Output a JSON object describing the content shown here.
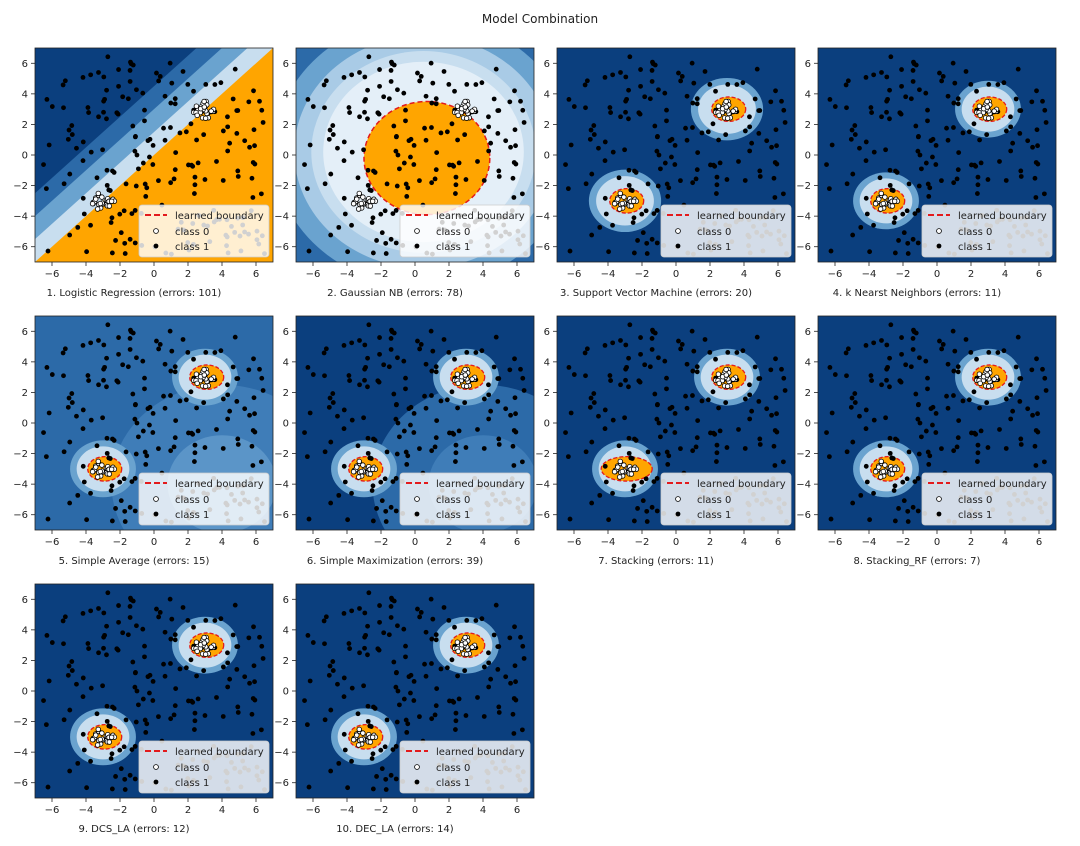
{
  "title": "Model Combination",
  "colors": {
    "dark_blue": "#0b3f7e",
    "mid_blue": "#2c6aa8",
    "light_blue": "#6aa3cf",
    "pale_blue": "#c8deef",
    "orange": "#ffa500",
    "boundary": "#e31a1c",
    "outlier": "#000000"
  },
  "legend": {
    "boundary": "learned boundary",
    "class0": "class 0",
    "class1": "class 1"
  },
  "chart_data": [
    {
      "type": "scatter",
      "subtitle": "1. Logistic Regression (errors: 101)",
      "model": "Logistic Regression",
      "errors": 101,
      "boundary": "linear",
      "xlim": [
        -7,
        7
      ],
      "ylim": [
        -7,
        7
      ],
      "xticks": [
        -6,
        -4,
        -2,
        0,
        2,
        4,
        6
      ],
      "yticks": [
        -6,
        -4,
        -2,
        0,
        2,
        4,
        6
      ],
      "inlier_centers": [
        [
          3,
          3
        ],
        [
          -3,
          -3
        ]
      ],
      "legend_position": "lower right"
    },
    {
      "type": "scatter",
      "subtitle": "2. Gaussian NB (errors: 78)",
      "model": "Gaussian NB",
      "errors": 78,
      "boundary": "circle",
      "xlim": [
        -7,
        7
      ],
      "ylim": [
        -7,
        7
      ],
      "xticks": [
        -6,
        -4,
        -2,
        0,
        2,
        4,
        6
      ],
      "yticks": [
        -6,
        -4,
        -2,
        0,
        2,
        4,
        6
      ],
      "inlier_centers": [
        [
          3,
          3
        ],
        [
          -3,
          -3
        ]
      ],
      "legend_position": "lower right"
    },
    {
      "type": "scatter",
      "subtitle": "3. Support Vector Machine (errors: 20)",
      "model": "Support Vector Machine",
      "errors": 20,
      "boundary": "blobs",
      "xlim": [
        -7,
        7
      ],
      "ylim": [
        -7,
        7
      ],
      "xticks": [
        -6,
        -4,
        -2,
        0,
        2,
        4,
        6
      ],
      "yticks": [
        -6,
        -4,
        -2,
        0,
        2,
        4,
        6
      ],
      "inlier_centers": [
        [
          3,
          3
        ],
        [
          -3,
          -3
        ]
      ],
      "legend_position": "lower right"
    },
    {
      "type": "scatter",
      "subtitle": "4. k Nearst Neighbors (errors: 11)",
      "model": "k Nearst Neighbors",
      "errors": 11,
      "boundary": "blobs",
      "xlim": [
        -7,
        7
      ],
      "ylim": [
        -7,
        7
      ],
      "xticks": [
        -6,
        -4,
        -2,
        0,
        2,
        4,
        6
      ],
      "yticks": [
        -6,
        -4,
        -2,
        0,
        2,
        4,
        6
      ],
      "inlier_centers": [
        [
          3,
          3
        ],
        [
          -3,
          -3
        ]
      ],
      "legend_position": "lower right"
    },
    {
      "type": "scatter",
      "subtitle": "5. Simple Average (errors: 15)",
      "model": "Simple Average",
      "errors": 15,
      "boundary": "blobs",
      "xlim": [
        -7,
        7
      ],
      "ylim": [
        -7,
        7
      ],
      "xticks": [
        -6,
        -4,
        -2,
        0,
        2,
        4,
        6
      ],
      "yticks": [
        -6,
        -4,
        -2,
        0,
        2,
        4,
        6
      ],
      "inlier_centers": [
        [
          3,
          3
        ],
        [
          -3,
          -3
        ]
      ],
      "legend_position": "lower right"
    },
    {
      "type": "scatter",
      "subtitle": "6. Simple Maximization (errors: 39)",
      "model": "Simple Maximization",
      "errors": 39,
      "boundary": "blobs",
      "xlim": [
        -7,
        7
      ],
      "ylim": [
        -7,
        7
      ],
      "xticks": [
        -6,
        -4,
        -2,
        0,
        2,
        4,
        6
      ],
      "yticks": [
        -6,
        -4,
        -2,
        0,
        2,
        4,
        6
      ],
      "inlier_centers": [
        [
          3,
          3
        ],
        [
          -3,
          -3
        ]
      ],
      "legend_position": "lower right"
    },
    {
      "type": "scatter",
      "subtitle": "7. Stacking (errors: 11)",
      "model": "Stacking",
      "errors": 11,
      "boundary": "blobs",
      "xlim": [
        -7,
        7
      ],
      "ylim": [
        -7,
        7
      ],
      "xticks": [
        -6,
        -4,
        -2,
        0,
        2,
        4,
        6
      ],
      "yticks": [
        -6,
        -4,
        -2,
        0,
        2,
        4,
        6
      ],
      "inlier_centers": [
        [
          3,
          3
        ],
        [
          -3,
          -3
        ]
      ],
      "legend_position": "lower right"
    },
    {
      "type": "scatter",
      "subtitle": "8. Stacking_RF (errors: 7)",
      "model": "Stacking_RF",
      "errors": 7,
      "boundary": "blobs",
      "xlim": [
        -7,
        7
      ],
      "ylim": [
        -7,
        7
      ],
      "xticks": [
        -6,
        -4,
        -2,
        0,
        2,
        4,
        6
      ],
      "yticks": [
        -6,
        -4,
        -2,
        0,
        2,
        4,
        6
      ],
      "inlier_centers": [
        [
          3,
          3
        ],
        [
          -3,
          -3
        ]
      ],
      "legend_position": "lower right"
    },
    {
      "type": "scatter",
      "subtitle": "9. DCS_LA (errors: 12)",
      "model": "DCS_LA",
      "errors": 12,
      "boundary": "blobs",
      "xlim": [
        -7,
        7
      ],
      "ylim": [
        -7,
        7
      ],
      "xticks": [
        -6,
        -4,
        -2,
        0,
        2,
        4,
        6
      ],
      "yticks": [
        -6,
        -4,
        -2,
        0,
        2,
        4,
        6
      ],
      "inlier_centers": [
        [
          3,
          3
        ],
        [
          -3,
          -3
        ]
      ],
      "legend_position": "lower right"
    },
    {
      "type": "scatter",
      "subtitle": "10. DEC_LA (errors: 14)",
      "model": "DEC_LA",
      "errors": 14,
      "boundary": "blobs",
      "xlim": [
        -7,
        7
      ],
      "ylim": [
        -7,
        7
      ],
      "xticks": [
        -6,
        -4,
        -2,
        0,
        2,
        4,
        6
      ],
      "yticks": [
        -6,
        -4,
        -2,
        0,
        2,
        4,
        6
      ],
      "inlier_centers": [
        [
          3,
          3
        ],
        [
          -3,
          -3
        ]
      ],
      "legend_position": "lower right"
    }
  ]
}
